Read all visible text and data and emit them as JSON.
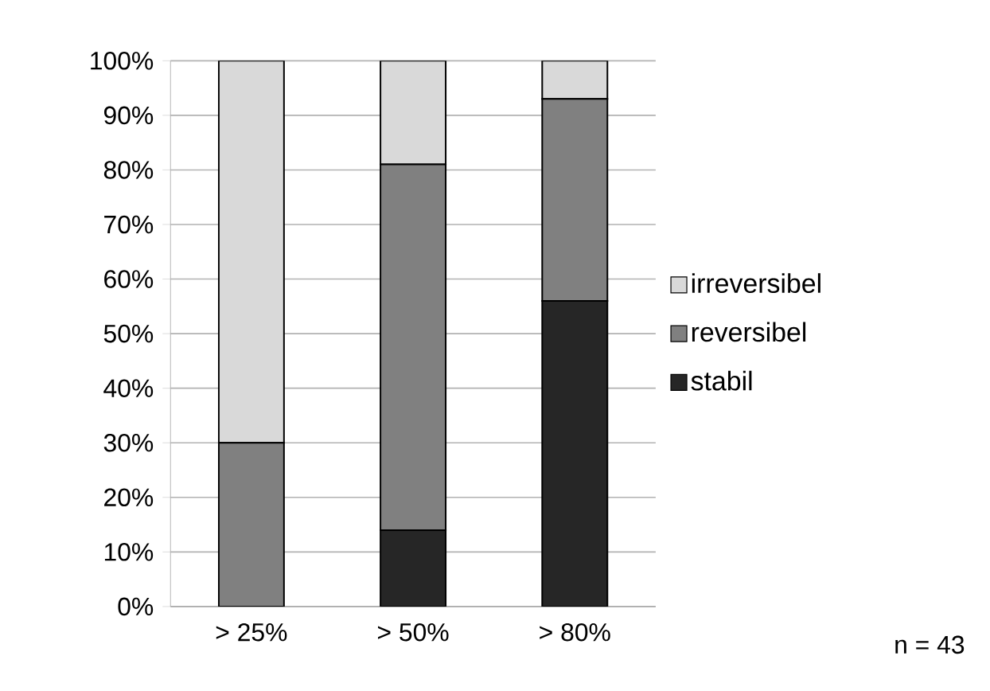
{
  "chart_data": {
    "type": "bar",
    "stacked": true,
    "categories": [
      "> 25%",
      "> 50%",
      "> 80%"
    ],
    "series": [
      {
        "name": "stabil",
        "color": "#262626",
        "values": [
          0,
          14,
          56
        ]
      },
      {
        "name": "reversibel",
        "color": "#808080",
        "values": [
          30,
          67,
          37
        ]
      },
      {
        "name": "irreversibel",
        "color": "#d9d9d9",
        "values": [
          70,
          19,
          7
        ]
      }
    ],
    "ylim": [
      0,
      100
    ],
    "yticks": [
      {
        "value": 0,
        "label": "0%"
      },
      {
        "value": 10,
        "label": "10%"
      },
      {
        "value": 20,
        "label": "20%"
      },
      {
        "value": 30,
        "label": "30%"
      },
      {
        "value": 40,
        "label": "40%"
      },
      {
        "value": 50,
        "label": "50%"
      },
      {
        "value": 60,
        "label": "60%"
      },
      {
        "value": 70,
        "label": "70%"
      },
      {
        "value": 80,
        "label": "80%"
      },
      {
        "value": 90,
        "label": "90%"
      },
      {
        "value": 100,
        "label": "100%"
      }
    ],
    "grid": "y",
    "legend": "right",
    "annotations": [
      "n = 43"
    ]
  }
}
